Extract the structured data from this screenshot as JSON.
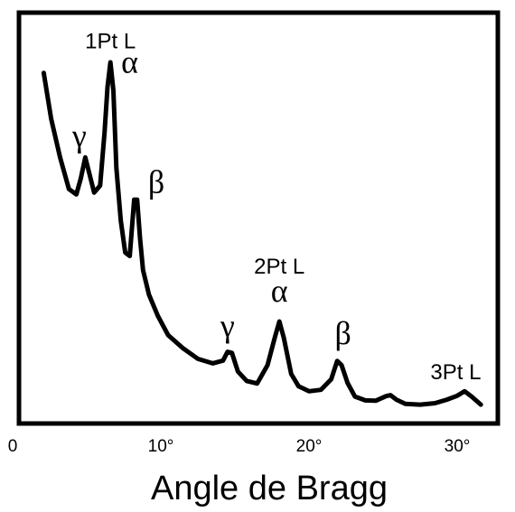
{
  "chart_data": {
    "type": "line",
    "title": "",
    "xlabel": "Angle de Bragg",
    "ylabel": "",
    "xlim": [
      0,
      33
    ],
    "ylim": [
      0,
      100
    ],
    "grid": false,
    "legend": "none",
    "x_ticks": [
      {
        "value": 0,
        "label": "0"
      },
      {
        "value": 10,
        "label": "10°"
      },
      {
        "value": 20,
        "label": "20°"
      },
      {
        "value": 30,
        "label": "30°"
      }
    ],
    "series": [
      {
        "color": "#000000",
        "x": [
          2.1,
          2.6,
          3.2,
          3.8,
          4.3,
          4.6,
          4.9,
          5.2,
          5.5,
          5.9,
          6.2,
          6.4,
          6.6,
          6.8,
          7.0,
          7.3,
          7.6,
          7.9,
          8.2,
          8.4,
          8.6,
          8.8,
          9.2,
          9.8,
          10.5,
          11.5,
          12.5,
          13.5,
          14.2,
          14.5,
          14.8,
          15.2,
          15.8,
          16.5,
          17.2,
          17.7,
          18.0,
          18.3,
          18.8,
          19.3,
          20.0,
          20.8,
          21.5,
          21.9,
          22.2,
          22.6,
          23.1,
          23.8,
          24.5,
          25.2,
          25.5,
          25.9,
          26.5,
          27.5,
          28.5,
          29.3,
          30.0,
          30.5,
          31.0,
          31.6
        ],
        "y": [
          97,
          84,
          73,
          64,
          62.5,
          67,
          73,
          68,
          63,
          65,
          80,
          93,
          100,
          92,
          70,
          55,
          46,
          45,
          61,
          61,
          50,
          41,
          34,
          28,
          22.5,
          18.8,
          15.8,
          14.5,
          15.3,
          17.8,
          17.5,
          12.2,
          9.5,
          8.8,
          14,
          22,
          26.4,
          21.8,
          11.5,
          8.0,
          6.6,
          7.0,
          10,
          15.2,
          14,
          9.0,
          5.1,
          4.0,
          3.9,
          5.2,
          5.5,
          4.2,
          3.0,
          2.8,
          3.2,
          4.2,
          5.3,
          6.6,
          5.0,
          2.8
        ]
      }
    ],
    "annotations": [
      {
        "id": "label-1pt-l",
        "text": "1Pt L",
        "style": "sans",
        "x": 6.6,
        "y": 104
      },
      {
        "id": "alpha-1",
        "text": "α",
        "style": "greek",
        "x": 7.9,
        "y": 97
      },
      {
        "id": "gamma-1",
        "text": "γ",
        "style": "greek",
        "x": 4.5,
        "y": 76
      },
      {
        "id": "beta-1",
        "text": "β",
        "style": "greek",
        "x": 9.7,
        "y": 63
      },
      {
        "id": "label-2pt-l",
        "text": "2Pt L",
        "style": "sans",
        "x": 18.0,
        "y": 40
      },
      {
        "id": "alpha-2",
        "text": "α",
        "style": "greek",
        "x": 18.0,
        "y": 32
      },
      {
        "id": "gamma-2",
        "text": "γ",
        "style": "greek",
        "x": 14.5,
        "y": 22
      },
      {
        "id": "beta-2",
        "text": "β",
        "style": "greek",
        "x": 22.3,
        "y": 20
      },
      {
        "id": "label-3pt-l",
        "text": "3Pt L",
        "style": "sans",
        "x": 29.9,
        "y": 10
      }
    ]
  }
}
